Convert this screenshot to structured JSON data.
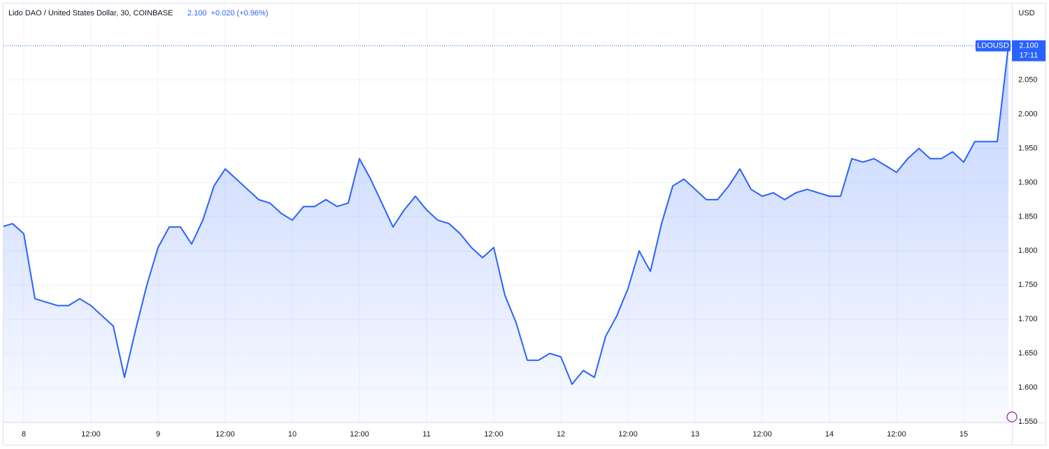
{
  "chart_data": {
    "type": "area",
    "title": "Lido DAO / United States Dollar, 30, COINBASE",
    "price_label": "2.100",
    "change_label": "+0.020 (+0.96%)",
    "symbol": "LDOUSD",
    "countdown": "17:11",
    "currency": "USD",
    "color": "#2962ff",
    "categories": [
      null,
      null,
      "8",
      null,
      null,
      null,
      null,
      null,
      "12:00",
      null,
      null,
      null,
      null,
      null,
      "9",
      null,
      null,
      null,
      null,
      null,
      "12:00",
      null,
      null,
      null,
      null,
      null,
      "10",
      null,
      null,
      null,
      null,
      null,
      "12:00",
      null,
      null,
      null,
      null,
      null,
      "11",
      null,
      null,
      null,
      null,
      null,
      "12:00",
      null,
      null,
      null,
      null,
      null,
      "12",
      null,
      null,
      null,
      null,
      null,
      "12:00",
      null,
      null,
      null,
      null,
      null,
      "13",
      null,
      null,
      null,
      null,
      null,
      "12:00",
      null,
      null,
      null,
      null,
      null,
      "14",
      null,
      null,
      null,
      null,
      null,
      "12:00",
      null,
      null,
      null,
      null,
      null,
      "15",
      null,
      null,
      null,
      null
    ],
    "values": [
      1.835,
      1.84,
      1.825,
      1.73,
      1.725,
      1.72,
      1.72,
      1.73,
      1.72,
      1.705,
      1.69,
      1.615,
      1.685,
      1.75,
      1.805,
      1.835,
      1.835,
      1.81,
      1.845,
      1.895,
      1.92,
      1.905,
      1.89,
      1.875,
      1.87,
      1.855,
      1.845,
      1.865,
      1.865,
      1.875,
      1.865,
      1.87,
      1.935,
      1.905,
      1.87,
      1.835,
      1.86,
      1.88,
      1.86,
      1.845,
      1.84,
      1.825,
      1.805,
      1.79,
      1.805,
      1.735,
      1.695,
      1.64,
      1.64,
      1.65,
      1.645,
      1.605,
      1.625,
      1.615,
      1.675,
      1.705,
      1.745,
      1.8,
      1.77,
      1.84,
      1.895,
      1.905,
      1.89,
      1.875,
      1.875,
      1.895,
      1.92,
      1.89,
      1.88,
      1.885,
      1.875,
      1.885,
      1.89,
      1.885,
      1.88,
      1.88,
      1.935,
      1.93,
      1.935,
      1.925,
      1.915,
      1.935,
      1.95,
      1.935,
      1.935,
      1.945,
      1.93,
      1.96,
      1.96,
      1.96,
      2.1
    ],
    "ylim": [
      1.55,
      2.162
    ],
    "yticks": [
      {
        "value": 1.55,
        "label": "1.550"
      },
      {
        "value": 1.6,
        "label": "1.600"
      },
      {
        "value": 1.65,
        "label": "1.650"
      },
      {
        "value": 1.7,
        "label": "1.700"
      },
      {
        "value": 1.75,
        "label": "1.750"
      },
      {
        "value": 1.8,
        "label": "1.800"
      },
      {
        "value": 1.85,
        "label": "1.850"
      },
      {
        "value": 1.9,
        "label": "1.900"
      },
      {
        "value": 1.95,
        "label": "1.950"
      },
      {
        "value": 2.0,
        "label": "2.000"
      },
      {
        "value": 2.05,
        "label": "2.050"
      }
    ],
    "grid": true
  }
}
